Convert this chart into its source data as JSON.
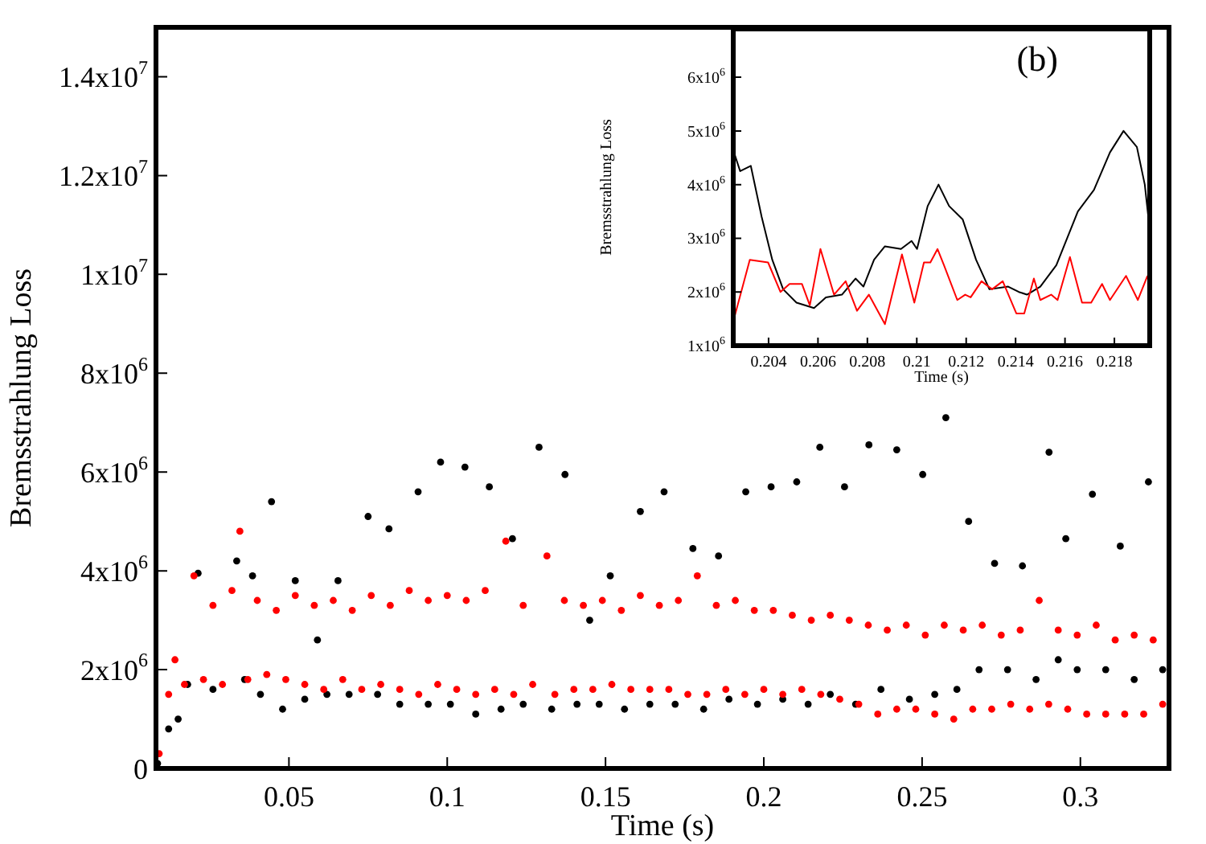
{
  "chart_data": [
    {
      "type": "scatter",
      "xlabel": "Time (s)",
      "ylabel": "Bremsstrahlung Loss",
      "marker": "circle",
      "grid": false,
      "legend": false,
      "xlim": [
        0.008,
        0.328
      ],
      "xticks": [
        0.05,
        0.1,
        0.15,
        0.2,
        0.25,
        0.3
      ],
      "ylim": [
        0,
        15000000.0
      ],
      "yticks": [
        0,
        {
          "value": 2000000.0,
          "label": "2x10$^{6}$"
        },
        {
          "value": 4000000.0,
          "label": "4x10$^{6}$"
        },
        {
          "value": 6000000.0,
          "label": "6x10$^{6}$"
        },
        {
          "value": 8000000.0,
          "label": "8x10$^{6}$"
        },
        {
          "value": 10000000.0,
          "label": "1x10$^{7}$"
        },
        {
          "value": 12000000.0,
          "label": "1.2x10$^{7}$"
        },
        {
          "value": 14000000.0,
          "label": "1.4x10$^{7}$"
        }
      ],
      "series": [
        {
          "color": "#000000",
          "x": [
            0.0085,
            0.012,
            0.015,
            0.018,
            0.0213,
            0.026,
            0.0335,
            0.036,
            0.0385,
            0.041,
            0.0445,
            0.048,
            0.052,
            0.055,
            0.059,
            0.062,
            0.0655,
            0.069,
            0.075,
            0.078,
            0.0816,
            0.085,
            0.0908,
            0.094,
            0.0979,
            0.101,
            0.1056,
            0.109,
            0.1133,
            0.117,
            0.1206,
            0.124,
            0.129,
            0.133,
            0.1372,
            0.141,
            0.145,
            0.148,
            0.1515,
            0.156,
            0.161,
            0.164,
            0.1685,
            0.172,
            0.1776,
            0.181,
            0.1857,
            0.189,
            0.1943,
            0.198,
            0.2023,
            0.206,
            0.2104,
            0.214,
            0.2177,
            0.221,
            0.2255,
            0.229,
            0.2332,
            0.237,
            0.242,
            0.246,
            0.2502,
            0.254,
            0.2575,
            0.261,
            0.2647,
            0.268,
            0.2729,
            0.277,
            0.2817,
            0.286,
            0.2901,
            0.293,
            0.2954,
            0.299,
            0.3038,
            0.308,
            0.3126,
            0.317,
            0.3215,
            0.326
          ],
          "values": [
            100000.0,
            800000.0,
            1000000.0,
            1700000.0,
            3950000.0,
            1600000.0,
            4200000.0,
            1800000.0,
            3900000.0,
            1500000.0,
            5400000.0,
            1200000.0,
            3800000.0,
            1400000.0,
            2600000.0,
            1500000.0,
            3800000.0,
            1500000.0,
            5100000.0,
            1500000.0,
            4850000.0,
            1300000.0,
            5600000.0,
            1300000.0,
            6200000.0,
            1300000.0,
            6100000.0,
            1100000.0,
            5700000.0,
            1200000.0,
            4650000.0,
            1300000.0,
            6500000.0,
            1200000.0,
            5950000.0,
            1300000.0,
            3000000.0,
            1300000.0,
            3900000.0,
            1200000.0,
            5200000.0,
            1300000.0,
            5600000.0,
            1300000.0,
            4450000.0,
            1200000.0,
            4300000.0,
            1400000.0,
            5600000.0,
            1300000.0,
            5700000.0,
            1400000.0,
            5800000.0,
            1300000.0,
            6500000.0,
            1500000.0,
            5700000.0,
            1300000.0,
            6550000.0,
            1600000.0,
            6450000.0,
            1400000.0,
            5950000.0,
            1500000.0,
            7100000.0,
            1600000.0,
            5000000.0,
            2000000.0,
            4150000.0,
            2000000.0,
            4100000.0,
            1800000.0,
            6400000.0,
            2200000.0,
            4650000.0,
            2000000.0,
            5550000.0,
            2000000.0,
            4500000.0,
            1800000.0,
            5800000.0,
            2000000.0
          ]
        },
        {
          "color": "#ff0000",
          "x": [
            0.009,
            0.012,
            0.014,
            0.017,
            0.02,
            0.023,
            0.026,
            0.029,
            0.032,
            0.0345,
            0.037,
            0.04,
            0.043,
            0.046,
            0.049,
            0.052,
            0.055,
            0.058,
            0.061,
            0.064,
            0.067,
            0.07,
            0.073,
            0.076,
            0.079,
            0.082,
            0.085,
            0.088,
            0.091,
            0.094,
            0.097,
            0.1,
            0.103,
            0.106,
            0.109,
            0.112,
            0.115,
            0.1185,
            0.121,
            0.124,
            0.127,
            0.1315,
            0.134,
            0.137,
            0.14,
            0.143,
            0.146,
            0.149,
            0.152,
            0.155,
            0.158,
            0.161,
            0.164,
            0.167,
            0.17,
            0.173,
            0.176,
            0.179,
            0.182,
            0.185,
            0.188,
            0.191,
            0.194,
            0.197,
            0.2,
            0.203,
            0.206,
            0.209,
            0.212,
            0.215,
            0.218,
            0.221,
            0.224,
            0.227,
            0.23,
            0.233,
            0.236,
            0.239,
            0.242,
            0.245,
            0.248,
            0.251,
            0.254,
            0.257,
            0.26,
            0.263,
            0.266,
            0.269,
            0.272,
            0.275,
            0.278,
            0.281,
            0.284,
            0.287,
            0.29,
            0.293,
            0.296,
            0.299,
            0.302,
            0.305,
            0.308,
            0.311,
            0.314,
            0.317,
            0.32,
            0.323,
            0.326
          ],
          "values": [
            300000.0,
            1500000.0,
            2200000.0,
            1700000.0,
            3900000.0,
            1800000.0,
            3300000.0,
            1700000.0,
            3600000.0,
            4800000.0,
            1800000.0,
            3400000.0,
            1900000.0,
            3200000.0,
            1800000.0,
            3500000.0,
            1700000.0,
            3300000.0,
            1600000.0,
            3400000.0,
            1800000.0,
            3200000.0,
            1600000.0,
            3500000.0,
            1700000.0,
            3300000.0,
            1600000.0,
            3600000.0,
            1500000.0,
            3400000.0,
            1700000.0,
            3500000.0,
            1600000.0,
            3400000.0,
            1500000.0,
            3600000.0,
            1600000.0,
            4600000.0,
            1500000.0,
            3300000.0,
            1700000.0,
            4300000.0,
            1500000.0,
            3400000.0,
            1600000.0,
            3300000.0,
            1600000.0,
            3400000.0,
            1700000.0,
            3200000.0,
            1600000.0,
            3500000.0,
            1600000.0,
            3300000.0,
            1600000.0,
            3400000.0,
            1500000.0,
            3900000.0,
            1500000.0,
            3300000.0,
            1600000.0,
            3400000.0,
            1500000.0,
            3200000.0,
            1600000.0,
            3200000.0,
            1500000.0,
            3100000.0,
            1600000.0,
            3000000.0,
            1500000.0,
            3100000.0,
            1400000.0,
            3000000.0,
            1300000.0,
            2900000.0,
            1100000.0,
            2800000.0,
            1200000.0,
            2900000.0,
            1200000.0,
            2700000.0,
            1100000.0,
            2900000.0,
            1000000.0,
            2800000.0,
            1200000.0,
            2900000.0,
            1200000.0,
            2700000.0,
            1300000.0,
            2800000.0,
            1200000.0,
            3400000.0,
            1300000.0,
            2800000.0,
            1200000.0,
            2700000.0,
            1100000.0,
            2900000.0,
            1100000.0,
            2600000.0,
            1100000.0,
            2700000.0,
            1100000.0,
            2600000.0,
            1300000.0
          ]
        }
      ]
    },
    {
      "type": "line",
      "xlabel": "Time (s)",
      "ylabel": "Bremsstrahlung Loss",
      "marker": "none",
      "grid": false,
      "legend": false,
      "annotations": [
        "(b)"
      ],
      "xlim": [
        0.20257,
        0.21943
      ],
      "xticks": [
        0.204,
        0.206,
        0.208,
        0.21,
        0.212,
        0.214,
        0.216,
        0.218
      ],
      "ylim": [
        1000000.0,
        6900000.0
      ],
      "yticks": [
        {
          "value": 1000000.0,
          "label": "1x10$^{6}$"
        },
        {
          "value": 2000000.0,
          "label": "2x10$^{6}$"
        },
        {
          "value": 3000000.0,
          "label": "3x10$^{6}$"
        },
        {
          "value": 4000000.0,
          "label": "4x10$^{6}$"
        },
        {
          "value": 5000000.0,
          "label": "5x10$^{6}$"
        },
        {
          "value": 6000000.0,
          "label": "6x10$^{6}$"
        }
      ],
      "series": [
        {
          "color": "#000000",
          "x": [
            0.2026,
            0.20285,
            0.20328,
            0.20372,
            0.20415,
            0.20459,
            0.20513,
            0.20584,
            0.20632,
            0.20697,
            0.20752,
            0.20784,
            0.20827,
            0.20871,
            0.20936,
            0.20979,
            0.21001,
            0.21044,
            0.21088,
            0.21131,
            0.21186,
            0.2124,
            0.21294,
            0.2137,
            0.21413,
            0.21446,
            0.215,
            0.21565,
            0.21652,
            0.21717,
            0.21782,
            0.21837,
            0.21891,
            0.21923,
            0.21942
          ],
          "values": [
            4600000.0,
            4250000.0,
            4350000.0,
            3400000.0,
            2600000.0,
            2050000.0,
            1800000.0,
            1700000.0,
            1900000.0,
            1950000.0,
            2250000.0,
            2100000.0,
            2600000.0,
            2850000.0,
            2800000.0,
            2950000.0,
            2800000.0,
            3600000.0,
            4000000.0,
            3600000.0,
            3350000.0,
            2600000.0,
            2050000.0,
            2100000.0,
            2000000.0,
            1950000.0,
            2100000.0,
            2500000.0,
            3500000.0,
            3900000.0,
            4600000.0,
            5000000.0,
            4700000.0,
            4000000.0,
            3200000.0
          ]
        },
        {
          "color": "#ff0000",
          "x": [
            0.2026,
            0.20324,
            0.20398,
            0.20448,
            0.20485,
            0.20535,
            0.20567,
            0.2061,
            0.20665,
            0.20712,
            0.20758,
            0.20806,
            0.20871,
            0.2094,
            0.2099,
            0.21029,
            0.21055,
            0.21084,
            0.2111,
            0.21164,
            0.21196,
            0.21218,
            0.21262,
            0.21305,
            0.21348,
            0.21403,
            0.21435,
            0.21474,
            0.215,
            0.21544,
            0.2157,
            0.2162,
            0.21669,
            0.21706,
            0.2175,
            0.21782,
            0.21847,
            0.21895,
            0.21934
          ],
          "values": [
            1500000.0,
            2600000.0,
            2550000.0,
            2000000.0,
            2150000.0,
            2150000.0,
            1750000.0,
            2800000.0,
            1950000.0,
            2200000.0,
            1650000.0,
            1950000.0,
            1400000.0,
            2700000.0,
            1800000.0,
            2550000.0,
            2550000.0,
            2800000.0,
            2500000.0,
            1850000.0,
            1950000.0,
            1900000.0,
            2200000.0,
            2050000.0,
            2200000.0,
            1600000.0,
            1600000.0,
            2250000.0,
            1850000.0,
            1950000.0,
            1850000.0,
            2650000.0,
            1800000.0,
            1800000.0,
            2150000.0,
            1850000.0,
            2300000.0,
            1850000.0,
            2300000.0
          ]
        }
      ]
    }
  ]
}
